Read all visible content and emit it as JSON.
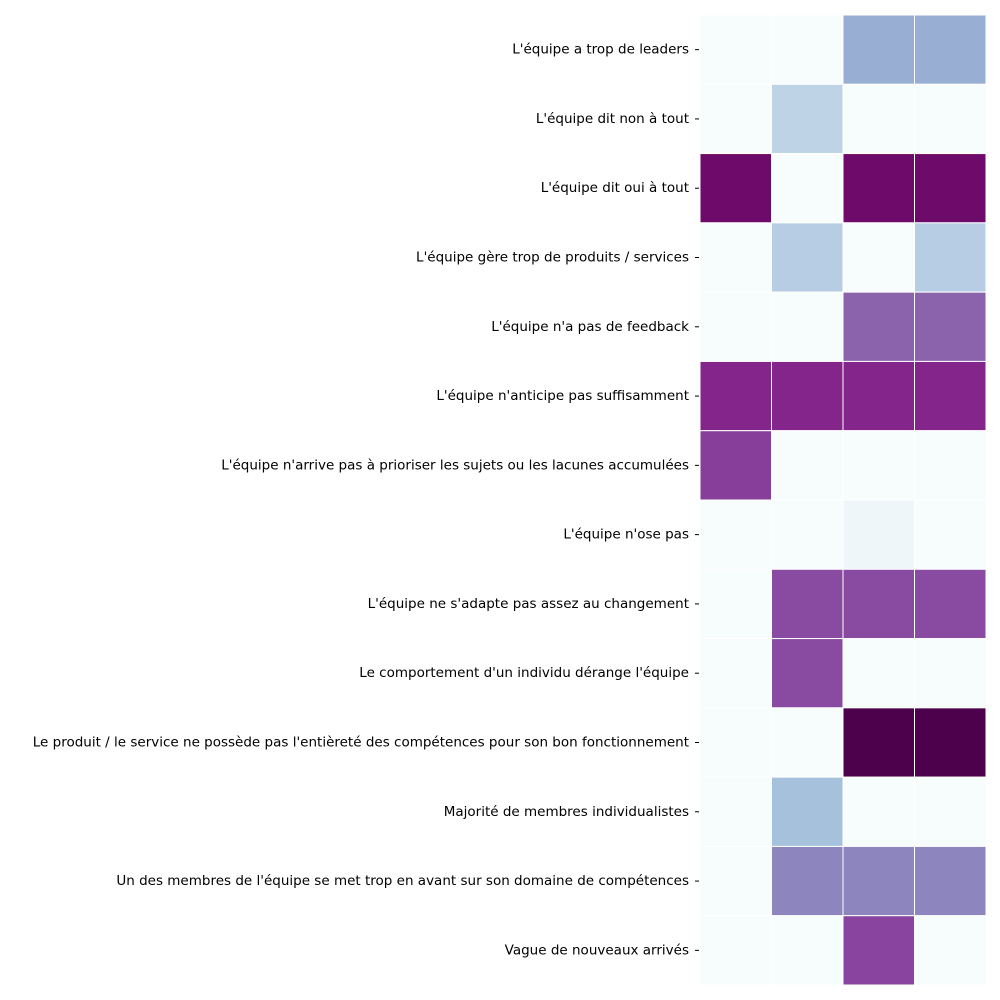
{
  "chart_data": {
    "type": "heatmap",
    "title": "",
    "xlabel": "",
    "ylabel": "",
    "columns": [
      "",
      "",
      "",
      ""
    ],
    "rows": [
      "L'équipe a trop de leaders",
      "L'équipe dit non à tout",
      "L'équipe dit oui à tout",
      "L'équipe gère trop de produits / services",
      "L'équipe n'a pas de feedback",
      "L'équipe n'anticipe pas suffisamment",
      "L'équipe n'arrive pas à prioriser les sujets ou les lacunes accumulées",
      "L'équipe n'ose pas",
      "L'équipe ne s'adapte pas assez au changement",
      "Le comportement d'un individu dérange l'équipe",
      "Le produit / le service ne possède pas l'entièreté des compétences pour son bon fonctionnement",
      "Majorité de membres individualistes",
      "Un des membres de l'équipe se met trop en avant sur son domaine de compétences",
      "Vague de nouveaux arrivés"
    ],
    "values": [
      [
        0.0,
        0.0,
        0.42,
        0.42
      ],
      [
        0.0,
        0.25,
        0.0,
        0.0
      ],
      [
        0.92,
        0.0,
        0.92,
        0.92
      ],
      [
        0.0,
        0.28,
        0.0,
        0.28
      ],
      [
        0.0,
        0.0,
        0.65,
        0.65
      ],
      [
        0.82,
        0.82,
        0.82,
        0.82
      ],
      [
        0.76,
        0.0,
        0.0,
        0.0
      ],
      [
        0.0,
        0.0,
        0.05,
        0.0
      ],
      [
        0.0,
        0.72,
        0.72,
        0.72
      ],
      [
        0.0,
        0.72,
        0.0,
        0.0
      ],
      [
        0.0,
        0.0,
        1.0,
        1.0
      ],
      [
        0.0,
        0.35,
        0.0,
        0.0
      ],
      [
        0.0,
        0.55,
        0.55,
        0.55
      ],
      [
        0.0,
        0.0,
        0.74,
        0.0
      ]
    ],
    "vmin": 0,
    "vmax": 1,
    "colormap": "BuPu",
    "colorbar": false,
    "grid_color": "#ffffff"
  }
}
